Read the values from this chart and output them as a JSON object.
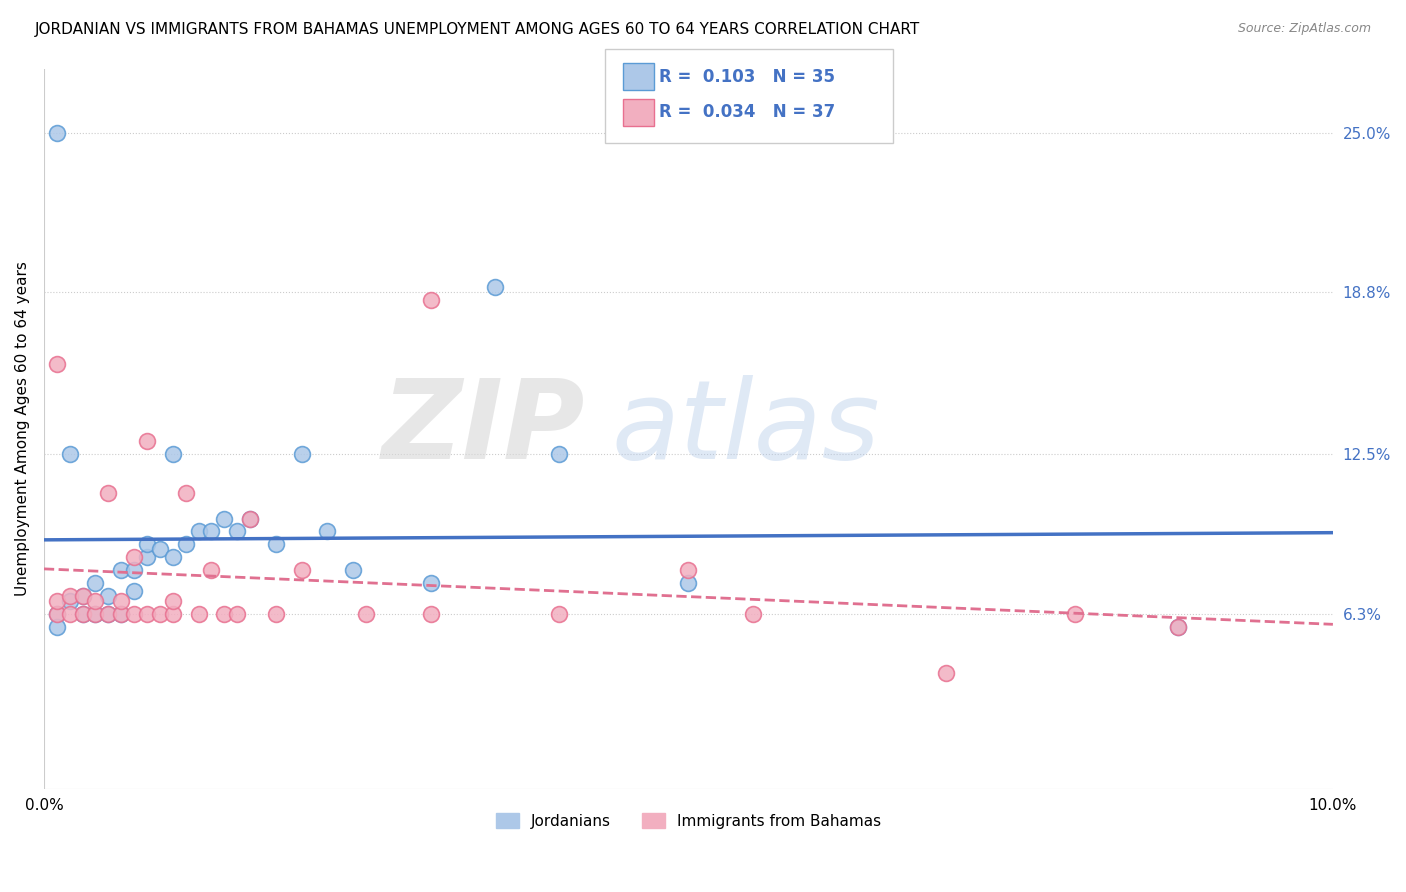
{
  "title": "JORDANIAN VS IMMIGRANTS FROM BAHAMAS UNEMPLOYMENT AMONG AGES 60 TO 64 YEARS CORRELATION CHART",
  "source": "Source: ZipAtlas.com",
  "ylabel": "Unemployment Among Ages 60 to 64 years",
  "x_min": 0.0,
  "x_max": 0.1,
  "y_min": -0.005,
  "y_max": 0.275,
  "y_tick_labels_right": [
    "25.0%",
    "18.8%",
    "12.5%",
    "6.3%"
  ],
  "y_tick_values_right": [
    0.25,
    0.188,
    0.125,
    0.063
  ],
  "legend_labels": [
    "Jordanians",
    "Immigrants from Bahamas"
  ],
  "R_jordanian": 0.103,
  "N_jordanian": 35,
  "R_bahamas": 0.034,
  "N_bahamas": 37,
  "color_jordanian_fill": "#adc8e8",
  "color_bahamas_fill": "#f2afc0",
  "color_jordanian_edge": "#5b9bd5",
  "color_bahamas_edge": "#e87090",
  "color_line_blue": "#4472c4",
  "color_line_pink": "#e07090",
  "color_right_labels": "#4472c4",
  "jordanian_x": [
    0.001,
    0.001,
    0.001,
    0.002,
    0.003,
    0.003,
    0.004,
    0.004,
    0.005,
    0.005,
    0.006,
    0.006,
    0.007,
    0.007,
    0.008,
    0.008,
    0.009,
    0.01,
    0.01,
    0.011,
    0.012,
    0.013,
    0.014,
    0.015,
    0.016,
    0.018,
    0.02,
    0.022,
    0.024,
    0.03,
    0.035,
    0.04,
    0.05,
    0.088,
    0.002
  ],
  "jordanian_y": [
    0.25,
    0.063,
    0.058,
    0.068,
    0.063,
    0.07,
    0.063,
    0.075,
    0.063,
    0.07,
    0.063,
    0.08,
    0.072,
    0.08,
    0.085,
    0.09,
    0.088,
    0.085,
    0.125,
    0.09,
    0.095,
    0.095,
    0.1,
    0.095,
    0.1,
    0.09,
    0.125,
    0.095,
    0.08,
    0.075,
    0.19,
    0.125,
    0.075,
    0.058,
    0.125
  ],
  "bahamas_x": [
    0.001,
    0.001,
    0.001,
    0.002,
    0.002,
    0.003,
    0.003,
    0.004,
    0.004,
    0.005,
    0.005,
    0.006,
    0.006,
    0.007,
    0.007,
    0.008,
    0.008,
    0.009,
    0.01,
    0.01,
    0.011,
    0.012,
    0.013,
    0.014,
    0.015,
    0.016,
    0.018,
    0.02,
    0.025,
    0.03,
    0.04,
    0.05,
    0.055,
    0.07,
    0.08,
    0.088,
    0.03
  ],
  "bahamas_y": [
    0.063,
    0.068,
    0.16,
    0.063,
    0.07,
    0.063,
    0.07,
    0.063,
    0.068,
    0.063,
    0.11,
    0.063,
    0.068,
    0.063,
    0.085,
    0.063,
    0.13,
    0.063,
    0.063,
    0.068,
    0.11,
    0.063,
    0.08,
    0.063,
    0.063,
    0.1,
    0.063,
    0.08,
    0.063,
    0.185,
    0.063,
    0.08,
    0.063,
    0.04,
    0.063,
    0.058,
    0.063
  ]
}
